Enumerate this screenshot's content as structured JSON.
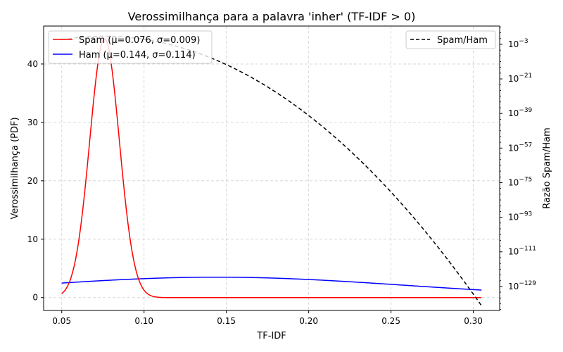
{
  "chart_data": {
    "type": "line",
    "title": "Verossimilhança para a palavra 'inher' (TF-IDF > 0)",
    "xlabel": "TF-IDF",
    "ylabel": "Verossimilhança (PDF)",
    "y2label": "Razão Spam/Ham",
    "xlim": [
      0.039,
      0.316
    ],
    "ylim": [
      -2.2,
      46.5
    ],
    "y2lim_log10": [
      -141.5,
      6.5
    ],
    "y2_scale": "log",
    "x_ticks": [
      0.05,
      0.1,
      0.15,
      0.2,
      0.25,
      0.3
    ],
    "x_tick_labels": [
      "0.05",
      "0.10",
      "0.15",
      "0.20",
      "0.25",
      "0.30"
    ],
    "y_ticks": [
      0,
      10,
      20,
      30,
      40
    ],
    "y_tick_labels": [
      "0",
      "10",
      "20",
      "30",
      "40"
    ],
    "y2_ticks_exponent": [
      -3,
      -21,
      -39,
      -57,
      -75,
      -93,
      -111,
      -129
    ],
    "y2_tick_labels": [
      {
        "base": "10",
        "exp": "−3"
      },
      {
        "base": "10",
        "exp": "−21"
      },
      {
        "base": "10",
        "exp": "−39"
      },
      {
        "base": "10",
        "exp": "−57"
      },
      {
        "base": "10",
        "exp": "−75"
      },
      {
        "base": "10",
        "exp": "−93"
      },
      {
        "base": "10",
        "exp": "−111"
      },
      {
        "base": "10",
        "exp": "−129"
      }
    ],
    "grid": true,
    "x_domain": [
      0.05,
      0.305
    ],
    "series": [
      {
        "name": "Spam (μ=0.076, σ=0.009)",
        "distribution": "normal",
        "mu": 0.076,
        "sigma": 0.009,
        "color": "#ff0000",
        "style": "solid",
        "axis": "left"
      },
      {
        "name": "Ham (μ=0.144, σ=0.114)",
        "distribution": "normal",
        "mu": 0.144,
        "sigma": 0.114,
        "color": "#0000ff",
        "style": "solid",
        "axis": "left"
      },
      {
        "name": "Spam/Ham",
        "distribution": "ratio",
        "color": "#000000",
        "style": "dashed",
        "axis": "right"
      }
    ],
    "legend_left": "top-left",
    "legend_right": "top-right"
  }
}
